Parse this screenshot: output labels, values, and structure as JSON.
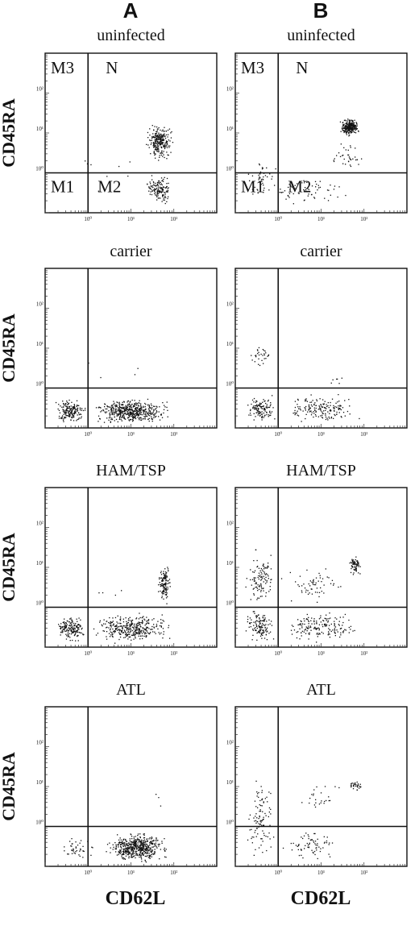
{
  "figure": {
    "column_labels": [
      "A",
      "B"
    ],
    "x_axis_label": "CD62L",
    "y_axis_label": "CD45RA"
  },
  "chart_data": [
    {
      "type": "scatter",
      "column": "A",
      "title": "uninfected",
      "xlabel": "CD62L",
      "ylabel": "CD45RA",
      "scale": "log",
      "xlim": [
        0.1,
        1000
      ],
      "ylim": [
        0.1,
        1000
      ],
      "x_ticks": [
        "10⁰",
        "10¹",
        "10²"
      ],
      "y_ticks": [
        "10⁰",
        "10¹",
        "10²"
      ],
      "region_labels": [
        "M3",
        "N",
        "M1",
        "M2"
      ],
      "gate": {
        "x": 1,
        "y": 1
      },
      "populations": [
        {
          "x_range": [
            20,
            100
          ],
          "y_range": [
            2,
            20
          ],
          "count": 260
        },
        {
          "x_range": [
            20,
            100
          ],
          "y_range": [
            0.15,
            1
          ],
          "count": 140
        },
        {
          "x_range": [
            0.15,
            20
          ],
          "y_range": [
            0.15,
            5
          ],
          "count": 8
        }
      ]
    },
    {
      "type": "scatter",
      "column": "B",
      "title": "uninfected",
      "xlabel": "CD62L",
      "ylabel": "CD45RA",
      "scale": "log",
      "xlim": [
        0.1,
        1000
      ],
      "ylim": [
        0.1,
        1000
      ],
      "x_ticks": [
        "10⁰",
        "10¹",
        "10²"
      ],
      "y_ticks": [
        "10⁰",
        "10¹",
        "10²"
      ],
      "region_labels": [
        "M3",
        "N",
        "M1",
        "M2"
      ],
      "gate": {
        "x": 1,
        "y": 1
      },
      "populations": [
        {
          "x_range": [
            25,
            80
          ],
          "y_range": [
            8,
            25
          ],
          "count": 260
        },
        {
          "x_range": [
            15,
            100
          ],
          "y_range": [
            1,
            8
          ],
          "count": 35
        },
        {
          "x_range": [
            0.15,
            100
          ],
          "y_range": [
            0.15,
            1
          ],
          "count": 70
        },
        {
          "x_range": [
            0.15,
            1
          ],
          "y_range": [
            0.2,
            3
          ],
          "count": 40
        }
      ]
    },
    {
      "type": "scatter",
      "column": "A",
      "title": "carrier",
      "xlabel": "CD62L",
      "ylabel": "CD45RA",
      "scale": "log",
      "xlim": [
        0.1,
        1000
      ],
      "ylim": [
        0.1,
        1000
      ],
      "x_ticks": [
        "10⁰",
        "10¹",
        "10²"
      ],
      "y_ticks": [
        "10⁰",
        "10¹",
        "10²"
      ],
      "gate": {
        "x": 1,
        "y": 1
      },
      "populations": [
        {
          "x_range": [
            0.15,
            1
          ],
          "y_range": [
            0.12,
            0.6
          ],
          "count": 180
        },
        {
          "x_range": [
            1,
            100
          ],
          "y_range": [
            0.12,
            0.6
          ],
          "count": 520
        },
        {
          "x_range": [
            0.3,
            60
          ],
          "y_range": [
            1,
            6
          ],
          "count": 4
        }
      ]
    },
    {
      "type": "scatter",
      "column": "B",
      "title": "carrier",
      "xlabel": "CD62L",
      "ylabel": "CD45RA",
      "scale": "log",
      "xlim": [
        0.1,
        1000
      ],
      "ylim": [
        0.1,
        1000
      ],
      "x_ticks": [
        "10⁰",
        "10¹",
        "10²"
      ],
      "y_ticks": [
        "10⁰",
        "10¹",
        "10²"
      ],
      "gate": {
        "x": 1,
        "y": 1
      },
      "populations": [
        {
          "x_range": [
            0.2,
            0.8
          ],
          "y_range": [
            3,
            15
          ],
          "count": 30
        },
        {
          "x_range": [
            0.15,
            1
          ],
          "y_range": [
            0.12,
            0.8
          ],
          "count": 120
        },
        {
          "x_range": [
            1,
            100
          ],
          "y_range": [
            0.12,
            0.8
          ],
          "count": 170
        },
        {
          "x_range": [
            5,
            80
          ],
          "y_range": [
            1,
            3
          ],
          "count": 6
        }
      ]
    },
    {
      "type": "scatter",
      "column": "A",
      "title": "HAM/TSP",
      "xlabel": "CD62L",
      "ylabel": "CD45RA",
      "scale": "log",
      "xlim": [
        0.1,
        1000
      ],
      "ylim": [
        0.1,
        1000
      ],
      "x_ticks": [
        "10⁰",
        "10¹",
        "10²"
      ],
      "y_ticks": [
        "10⁰",
        "10¹",
        "10²"
      ],
      "gate": {
        "x": 1,
        "y": 1
      },
      "populations": [
        {
          "x_range": [
            0.15,
            1
          ],
          "y_range": [
            0.12,
            0.8
          ],
          "count": 170
        },
        {
          "x_range": [
            1,
            100
          ],
          "y_range": [
            0.12,
            0.8
          ],
          "count": 360
        },
        {
          "x_range": [
            40,
            90
          ],
          "y_range": [
            1,
            15
          ],
          "count": 130
        },
        {
          "x_range": [
            0.5,
            20
          ],
          "y_range": [
            1,
            4
          ],
          "count": 5
        }
      ]
    },
    {
      "type": "scatter",
      "column": "B",
      "title": "HAM/TSP",
      "xlabel": "CD62L",
      "ylabel": "CD45RA",
      "scale": "log",
      "xlim": [
        0.1,
        1000
      ],
      "ylim": [
        0.1,
        1000
      ],
      "x_ticks": [
        "10⁰",
        "10¹",
        "10²"
      ],
      "y_ticks": [
        "10⁰",
        "10¹",
        "10²"
      ],
      "gate": {
        "x": 1,
        "y": 1
      },
      "populations": [
        {
          "x_range": [
            0.15,
            1
          ],
          "y_range": [
            1,
            30
          ],
          "count": 110
        },
        {
          "x_range": [
            0.15,
            1
          ],
          "y_range": [
            0.12,
            1
          ],
          "count": 130
        },
        {
          "x_range": [
            1,
            100
          ],
          "y_range": [
            0.12,
            1
          ],
          "count": 170
        },
        {
          "x_range": [
            1,
            40
          ],
          "y_range": [
            1,
            15
          ],
          "count": 60
        },
        {
          "x_range": [
            40,
            90
          ],
          "y_range": [
            6,
            20
          ],
          "count": 70
        }
      ]
    },
    {
      "type": "scatter",
      "column": "A",
      "title": "ATL",
      "xlabel": "CD62L",
      "ylabel": "CD45RA",
      "scale": "log",
      "xlim": [
        0.1,
        1000
      ],
      "ylim": [
        0.1,
        1000
      ],
      "x_ticks": [
        "10⁰",
        "10¹",
        "10²"
      ],
      "y_ticks": [
        "10⁰",
        "10¹",
        "10²"
      ],
      "gate": {
        "x": 1,
        "y": 1
      },
      "populations": [
        {
          "x_range": [
            2,
            90
          ],
          "y_range": [
            0.12,
            0.8
          ],
          "count": 520
        },
        {
          "x_range": [
            0.15,
            2
          ],
          "y_range": [
            0.12,
            0.7
          ],
          "count": 40
        },
        {
          "x_range": [
            30,
            80
          ],
          "y_range": [
            3,
            15
          ],
          "count": 3
        }
      ]
    },
    {
      "type": "scatter",
      "column": "B",
      "title": "ATL",
      "xlabel": "CD62L",
      "ylabel": "CD45RA",
      "scale": "log",
      "xlim": [
        0.1,
        1000
      ],
      "ylim": [
        0.1,
        1000
      ],
      "x_ticks": [
        "10⁰",
        "10¹",
        "10²"
      ],
      "y_ticks": [
        "10⁰",
        "10¹",
        "10²"
      ],
      "gate": {
        "x": 1,
        "y": 1
      },
      "populations": [
        {
          "x_range": [
            0.15,
            1
          ],
          "y_range": [
            0.12,
            20
          ],
          "count": 100
        },
        {
          "x_range": [
            1,
            40
          ],
          "y_range": [
            0.12,
            1
          ],
          "count": 70
        },
        {
          "x_range": [
            40,
            90
          ],
          "y_range": [
            8,
            15
          ],
          "count": 30
        },
        {
          "x_range": [
            2,
            40
          ],
          "y_range": [
            2,
            15
          ],
          "count": 25
        }
      ]
    }
  ]
}
